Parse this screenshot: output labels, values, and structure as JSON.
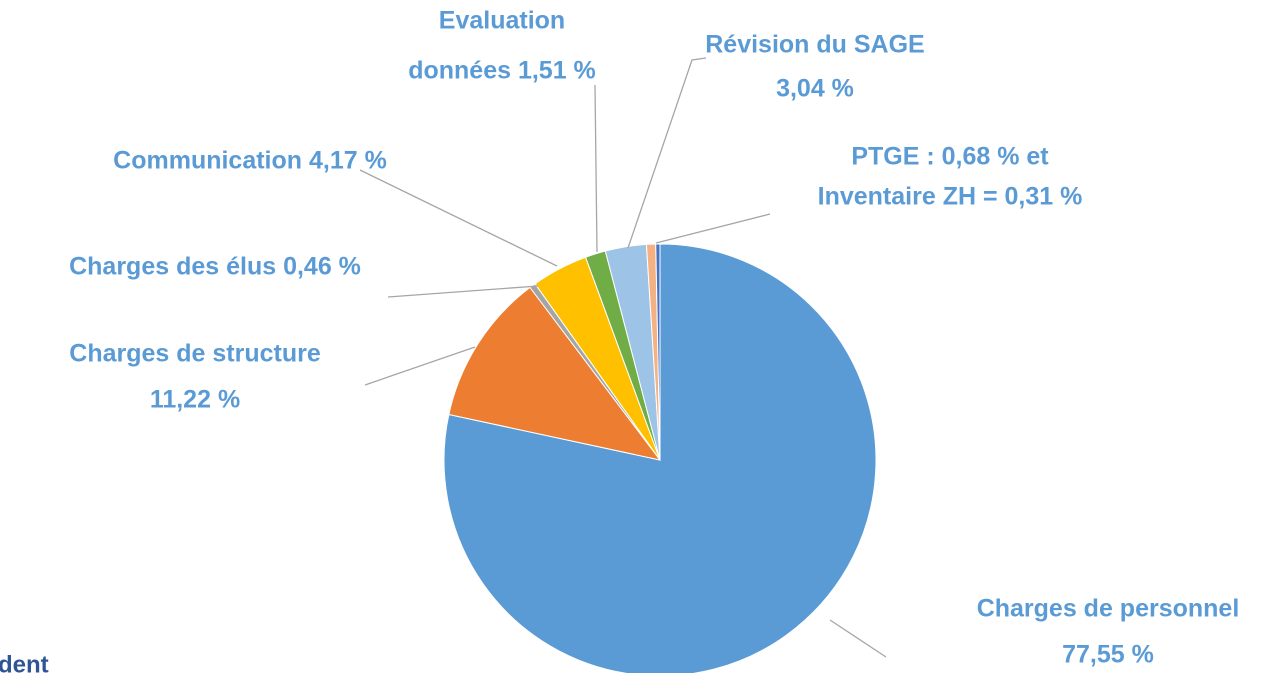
{
  "chart_data": {
    "type": "pie",
    "values": [
      77.55,
      11.22,
      0.46,
      4.17,
      1.51,
      3.04,
      0.68,
      0.31
    ],
    "colors": [
      "#5b9bd5",
      "#ed7d31",
      "#a5a5a5",
      "#ffc000",
      "#70ad47",
      "#9dc3e6",
      "#f4b183",
      "#4472c4"
    ],
    "labels": [
      [
        "Charges de personnel",
        "77,55 %"
      ],
      [
        "Charges de structure",
        "11,22 %"
      ],
      [
        "Charges des élus 0,46 %"
      ],
      [
        "Communication 4,17 %"
      ],
      [
        "Evaluation",
        "données 1,51 %"
      ],
      [
        "Révision du SAGE",
        "3,04 %"
      ],
      [
        "PTGE : 0,68 % et",
        "Inventaire ZH = 0,31 %"
      ],
      null
    ],
    "footer_fragment": "dent"
  }
}
